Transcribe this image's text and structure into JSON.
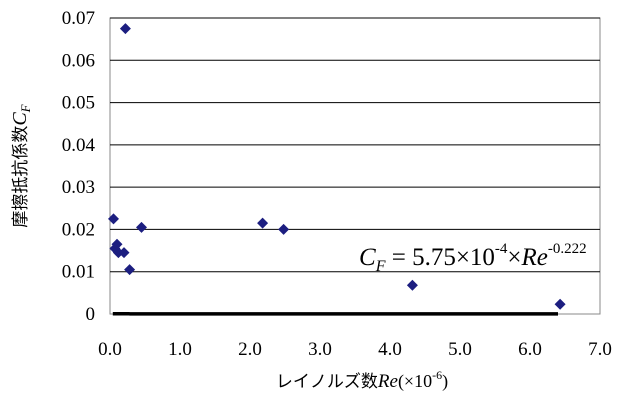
{
  "chart_data": {
    "type": "scatter",
    "x_range": [
      0.0,
      7.0
    ],
    "y_range": [
      0,
      0.07
    ],
    "x_ticks": [
      "0.0",
      "1.0",
      "2.0",
      "3.0",
      "4.0",
      "5.0",
      "6.0",
      "7.0"
    ],
    "y_ticks": [
      "0",
      "0.01",
      "0.02",
      "0.03",
      "0.04",
      "0.05",
      "0.06",
      "0.07"
    ],
    "grid": "horizontal",
    "xlabel": {
      "jp": "レイノルズ数",
      "var": "Re",
      "unit": "(×10",
      "unit_exp": "-6",
      "unit_close": ")"
    },
    "ylabel": {
      "jp": "摩擦抵抗係数",
      "var": "C",
      "sub": "F"
    },
    "points": [
      {
        "x": 0.05,
        "y": 0.0225
      },
      {
        "x": 0.07,
        "y": 0.0155
      },
      {
        "x": 0.1,
        "y": 0.0165
      },
      {
        "x": 0.12,
        "y": 0.0145
      },
      {
        "x": 0.2,
        "y": 0.0145
      },
      {
        "x": 0.22,
        "y": 0.0675
      },
      {
        "x": 0.28,
        "y": 0.0105
      },
      {
        "x": 0.45,
        "y": 0.0205
      },
      {
        "x": 2.18,
        "y": 0.0215
      },
      {
        "x": 2.48,
        "y": 0.02
      },
      {
        "x": 4.32,
        "y": 0.0068
      },
      {
        "x": 6.43,
        "y": 0.0023
      }
    ],
    "fit": {
      "coef": 0.000575,
      "exponent": -0.222,
      "x_min": 0.04,
      "x_max": 6.4
    },
    "equation": {
      "lhs": "C",
      "lhs_sub": "F",
      "body": " = 5.75×10",
      "exp1": "-4",
      "mid": "×",
      "var": "Re",
      "exp2": "-0.222"
    },
    "colors": {
      "marker": "#1c1e80",
      "line": "#000000",
      "grid": "#000000"
    }
  }
}
